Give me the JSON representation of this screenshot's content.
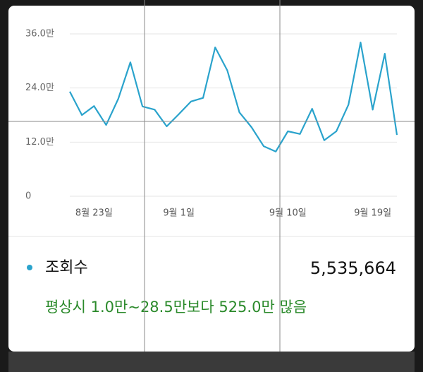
{
  "chart_data": {
    "type": "line",
    "categories": [
      null,
      null,
      "8월 23일",
      null,
      null,
      null,
      null,
      null,
      null,
      "9월 1일",
      null,
      null,
      null,
      null,
      null,
      null,
      null,
      null,
      "9월 10일",
      null,
      null,
      null,
      null,
      null,
      null,
      "9월 19일",
      null,
      null
    ],
    "series": [
      {
        "name": "조회수",
        "color": "#2aa3cc",
        "values": [
          23.2,
          18,
          20,
          15.8,
          21.6,
          29.7,
          19.9,
          19.2,
          15.5,
          18.2,
          21,
          21.8,
          33,
          27.9,
          18.6,
          15.3,
          11.1,
          9.9,
          14.4,
          13.8,
          19.4,
          12.4,
          14.4,
          20.3,
          34.1,
          19.2,
          31.6,
          13.6
        ]
      }
    ],
    "ylim": [
      0,
      36
    ],
    "yticks": [
      {
        "value": 0,
        "label": "0"
      },
      {
        "value": 12,
        "label": "12.0만"
      },
      {
        "value": 24,
        "label": "24.0만"
      },
      {
        "value": 36,
        "label": "36.0만"
      }
    ],
    "grid": true,
    "total": "5,535,664",
    "comparison": "평상시 1.0만~28.5만보다 525.0만 많음"
  }
}
